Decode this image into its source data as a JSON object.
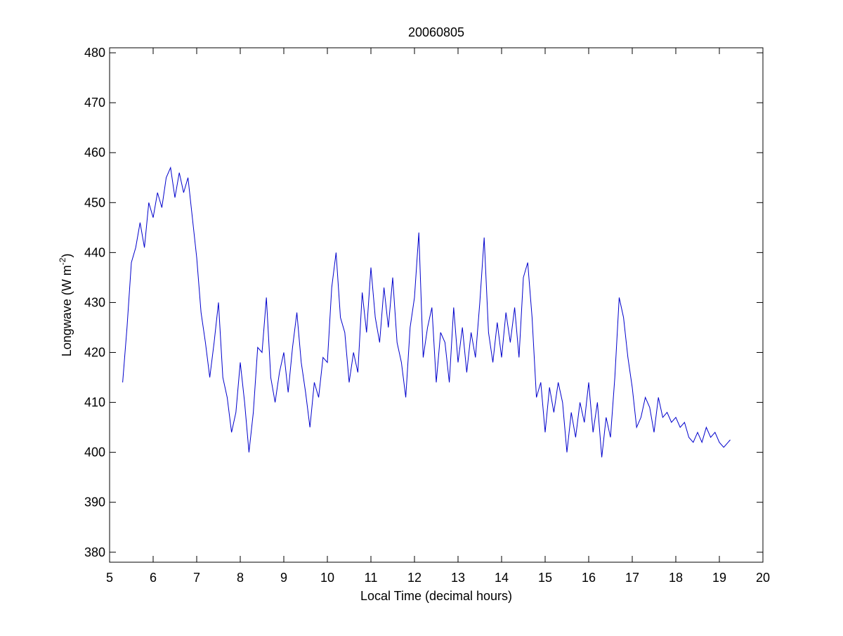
{
  "chart_data": {
    "type": "line",
    "title": "20060805",
    "xlabel": "Local Time (decimal hours)",
    "ylabel": {
      "text": "Longwave (W m",
      "superscript": "-2",
      "suffix": ")"
    },
    "xlim": [
      5,
      20
    ],
    "ylim": [
      378,
      481
    ],
    "xticks": [
      5,
      6,
      7,
      8,
      9,
      10,
      11,
      12,
      13,
      14,
      15,
      16,
      17,
      18,
      19,
      20
    ],
    "yticks": [
      380,
      390,
      400,
      410,
      420,
      430,
      440,
      450,
      460,
      470,
      480
    ],
    "grid": false,
    "x": [
      5.3,
      5.4,
      5.5,
      5.6,
      5.7,
      5.8,
      5.9,
      6.0,
      6.1,
      6.2,
      6.3,
      6.4,
      6.5,
      6.6,
      6.7,
      6.8,
      6.9,
      7.0,
      7.1,
      7.2,
      7.3,
      7.4,
      7.5,
      7.6,
      7.7,
      7.8,
      7.9,
      8.0,
      8.1,
      8.2,
      8.3,
      8.4,
      8.5,
      8.6,
      8.7,
      8.8,
      8.9,
      9.0,
      9.1,
      9.2,
      9.3,
      9.4,
      9.5,
      9.6,
      9.7,
      9.8,
      9.9,
      10.0,
      10.1,
      10.2,
      10.3,
      10.4,
      10.5,
      10.6,
      10.7,
      10.8,
      10.9,
      11.0,
      11.1,
      11.2,
      11.3,
      11.4,
      11.5,
      11.6,
      11.7,
      11.8,
      11.9,
      12.0,
      12.1,
      12.2,
      12.3,
      12.4,
      12.5,
      12.6,
      12.7,
      12.8,
      12.9,
      13.0,
      13.1,
      13.2,
      13.3,
      13.4,
      13.5,
      13.6,
      13.7,
      13.8,
      13.9,
      14.0,
      14.1,
      14.2,
      14.3,
      14.4,
      14.5,
      14.6,
      14.7,
      14.8,
      14.9,
      15.0,
      15.1,
      15.2,
      15.3,
      15.4,
      15.5,
      15.6,
      15.7,
      15.8,
      15.9,
      16.0,
      16.1,
      16.2,
      16.3,
      16.4,
      16.5,
      16.6,
      16.7,
      16.8,
      16.9,
      17.0,
      17.1,
      17.2,
      17.3,
      17.4,
      17.5,
      17.6,
      17.7,
      17.8,
      17.9,
      18.0,
      18.1,
      18.2,
      18.3,
      18.4,
      18.5,
      18.6,
      18.7,
      18.8,
      18.9,
      19.0,
      19.1,
      19.2,
      19.25
    ],
    "series": [
      {
        "color": "#0000cc",
        "values": [
          414,
          425,
          438,
          441,
          446,
          441,
          450,
          447,
          452,
          449,
          455,
          457,
          451,
          456,
          452,
          455,
          447,
          439,
          428,
          422,
          415,
          422,
          430,
          415,
          411,
          404,
          408,
          418,
          410,
          400,
          408,
          421,
          420,
          431,
          415,
          410,
          416,
          420,
          412,
          421,
          428,
          418,
          412,
          405,
          414,
          411,
          419,
          418,
          433,
          440,
          427,
          424,
          414,
          420,
          416,
          432,
          424,
          437,
          427,
          422,
          433,
          425,
          435,
          422,
          418,
          411,
          425,
          431,
          444,
          419,
          425,
          429,
          414,
          424,
          422,
          414,
          429,
          418,
          425,
          416,
          424,
          419,
          430,
          443,
          424,
          418,
          426,
          419,
          428,
          422,
          429,
          419,
          435,
          438,
          427,
          411,
          414,
          404,
          413,
          408,
          414,
          410,
          400,
          408,
          403,
          410,
          406,
          414,
          404,
          410,
          399,
          407,
          403,
          415,
          431,
          427,
          419,
          413,
          405,
          407,
          411,
          409,
          404,
          411,
          407,
          408,
          406,
          407,
          405,
          406,
          403,
          402,
          404,
          402,
          405,
          403,
          404,
          402,
          401,
          402,
          402.5
        ]
      }
    ]
  }
}
